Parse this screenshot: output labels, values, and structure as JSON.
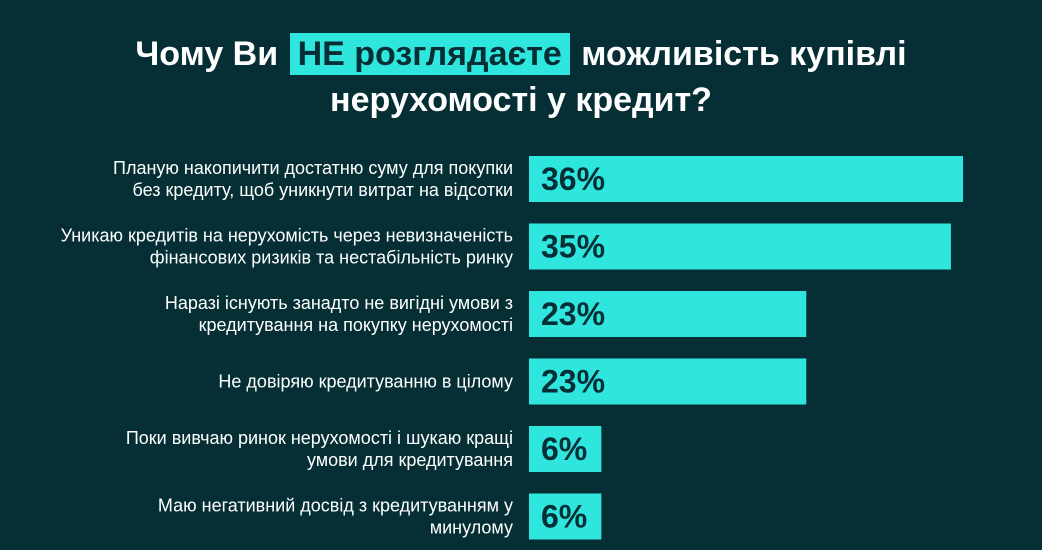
{
  "title": {
    "before": "Чому Ви",
    "highlight": "НЕ розглядаєте",
    "after": "можливість купівлі",
    "line2": "нерухомості у кредит?"
  },
  "colors": {
    "background": "#052f35",
    "bar": "#2ee6de",
    "label_text": "#ffffff",
    "value_text": "#052f35"
  },
  "chart_data": {
    "type": "bar",
    "orientation": "horizontal",
    "categories": [
      [
        "Планую накопичити достатню суму для покупки",
        "без кредиту, щоб уникнути витрат на відсотки"
      ],
      [
        "Уникаю кредитів на нерухомість через невизначеність",
        "фінансових ризиків та нестабільність ринку"
      ],
      [
        "Наразі існують занадто не вигідні умови з",
        "кредитування на покупку нерухомості"
      ],
      [
        "Не довіряю кредитуванню в цілому"
      ],
      [
        "Поки вивчаю ринок нерухомості і шукаю кращі",
        "умови для кредитування"
      ],
      [
        "Маю негативний досвід з кредитуванням у",
        "минулому"
      ]
    ],
    "values": [
      36,
      35,
      23,
      23,
      6,
      6
    ],
    "value_labels": [
      "36%",
      "35%",
      "23%",
      "23%",
      "6%",
      "6%"
    ],
    "xlim": [
      0,
      36
    ],
    "grid": false,
    "legend": "none"
  }
}
